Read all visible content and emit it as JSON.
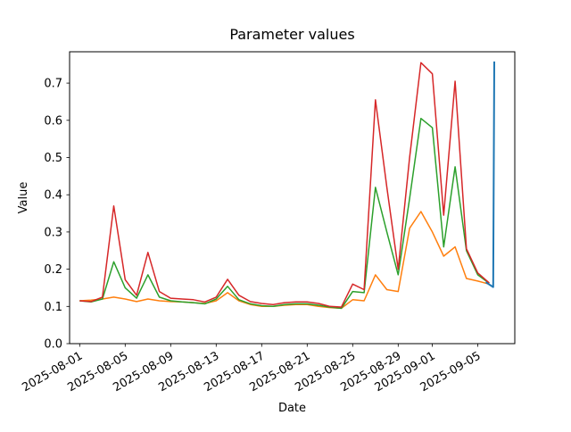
{
  "figure": {
    "background": "#ffffff",
    "frame_color": "#000000"
  },
  "chart_data": {
    "type": "line",
    "title": "Parameter values",
    "xlabel": "Date",
    "ylabel": "Value",
    "grid": false,
    "legend": false,
    "ylim": [
      0.0,
      0.784
    ],
    "y_ticks": [
      0.0,
      0.1,
      0.2,
      0.3,
      0.4,
      0.5,
      0.6,
      0.7
    ],
    "y_tick_labels": [
      "0.0",
      "0.1",
      "0.2",
      "0.3",
      "0.4",
      "0.5",
      "0.6",
      "0.7"
    ],
    "x_tick_labels": [
      "2025-08-01",
      "2025-08-05",
      "2025-08-09",
      "2025-08-13",
      "2025-08-17",
      "2025-08-21",
      "2025-08-25",
      "2025-08-29",
      "2025-09-01",
      "2025-09-05"
    ],
    "x_tick_day_indices": [
      0,
      4,
      8,
      12,
      16,
      20,
      24,
      28,
      31,
      35
    ],
    "x_tick_rotation_deg": 30,
    "x_dates": [
      "2025-08-01",
      "2025-08-02",
      "2025-08-03",
      "2025-08-04",
      "2025-08-05",
      "2025-08-06",
      "2025-08-07",
      "2025-08-08",
      "2025-08-09",
      "2025-08-10",
      "2025-08-11",
      "2025-08-12",
      "2025-08-13",
      "2025-08-14",
      "2025-08-15",
      "2025-08-16",
      "2025-08-17",
      "2025-08-18",
      "2025-08-19",
      "2025-08-20",
      "2025-08-21",
      "2025-08-22",
      "2025-08-23",
      "2025-08-24",
      "2025-08-25",
      "2025-08-26",
      "2025-08-27",
      "2025-08-28",
      "2025-08-29",
      "2025-08-30",
      "2025-08-31",
      "2025-09-01",
      "2025-09-02",
      "2025-09-03",
      "2025-09-04",
      "2025-09-05",
      "2025-09-06"
    ],
    "series": [
      {
        "name": "orange",
        "color": "#ff7f0e",
        "line_width": 1.5,
        "values": [
          0.115,
          0.117,
          0.12,
          0.125,
          0.12,
          0.113,
          0.12,
          0.115,
          0.113,
          0.112,
          0.11,
          0.108,
          0.115,
          0.137,
          0.115,
          0.105,
          0.1,
          0.1,
          0.103,
          0.105,
          0.105,
          0.1,
          0.097,
          0.095,
          0.118,
          0.115,
          0.185,
          0.145,
          0.14,
          0.31,
          0.355,
          0.3,
          0.235,
          0.26,
          0.175,
          0.168,
          0.16
        ]
      },
      {
        "name": "green",
        "color": "#2ca02c",
        "line_width": 1.5,
        "values": [
          0.115,
          0.112,
          0.12,
          0.22,
          0.15,
          0.122,
          0.185,
          0.125,
          0.115,
          0.112,
          0.11,
          0.107,
          0.12,
          0.154,
          0.118,
          0.107,
          0.102,
          0.1,
          0.105,
          0.107,
          0.107,
          0.103,
          0.098,
          0.095,
          0.14,
          0.137,
          0.42,
          0.3,
          0.185,
          0.39,
          0.605,
          0.58,
          0.26,
          0.475,
          0.25,
          0.185,
          0.162
        ]
      },
      {
        "name": "red",
        "color": "#d62728",
        "line_width": 1.5,
        "values": [
          0.115,
          0.113,
          0.125,
          0.37,
          0.172,
          0.13,
          0.245,
          0.14,
          0.122,
          0.12,
          0.118,
          0.112,
          0.125,
          0.173,
          0.13,
          0.113,
          0.108,
          0.105,
          0.11,
          0.112,
          0.112,
          0.108,
          0.1,
          0.098,
          0.16,
          0.145,
          0.655,
          0.42,
          0.2,
          0.5,
          0.755,
          0.725,
          0.345,
          0.705,
          0.255,
          0.19,
          0.163
        ]
      },
      {
        "name": "blue",
        "color": "#1f77b4",
        "line_width": 2,
        "points": [
          {
            "x": 35.7,
            "y": 0.165
          },
          {
            "x": 36.35,
            "y": 0.152
          },
          {
            "x": 36.45,
            "y": 0.758
          }
        ]
      }
    ]
  }
}
